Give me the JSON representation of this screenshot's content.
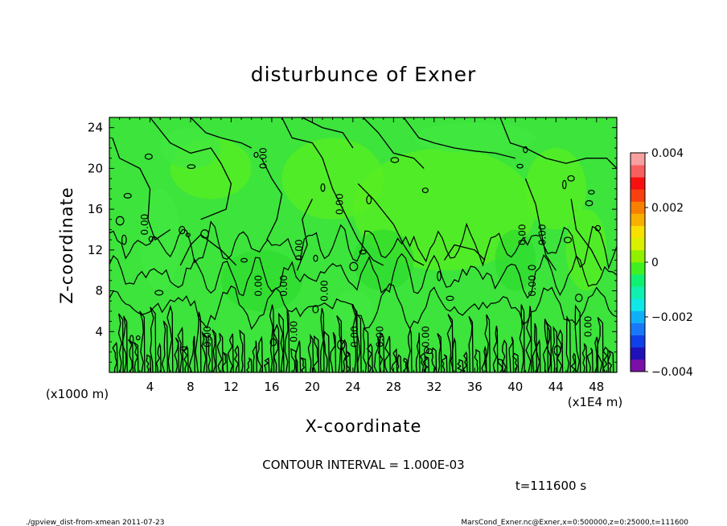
{
  "chart_data": {
    "type": "heatmap",
    "title": "disturbunce of Exner",
    "xlabel": "X-coordinate",
    "ylabel": "Z-coordinate",
    "x_unit_left": "(x1000 m)",
    "x_unit_right": "(x1E4 m)",
    "x_ticks": [
      "4",
      "8",
      "12",
      "16",
      "20",
      "24",
      "28",
      "32",
      "36",
      "40",
      "44",
      "48"
    ],
    "x_tick_values": [
      4,
      8,
      12,
      16,
      20,
      24,
      28,
      32,
      36,
      40,
      44,
      48
    ],
    "xlim": [
      0,
      50
    ],
    "y_ticks": [
      "4",
      "8",
      "12",
      "16",
      "20",
      "24"
    ],
    "y_tick_values": [
      4,
      8,
      12,
      16,
      20,
      24
    ],
    "ylim": [
      0,
      25
    ],
    "contour_interval_text": "CONTOUR INTERVAL = 1.000E-03",
    "contour_label": "0.00",
    "time_text": "t=111600 s",
    "colorbar": {
      "range": [
        -0.004,
        0.004
      ],
      "tick_labels": [
        "0.004",
        "0.002",
        "0",
        "−0.002",
        "−0.004"
      ],
      "tick_values": [
        0.004,
        0.002,
        0,
        -0.002,
        -0.004
      ],
      "colors": [
        "#7b10a8",
        "#2010b8",
        "#1040e8",
        "#1878f8",
        "#10b0f8",
        "#10e8e8",
        "#10f0b0",
        "#10f070",
        "#40f020",
        "#90f000",
        "#d8f000",
        "#f8e000",
        "#f8b000",
        "#f88000",
        "#f84010",
        "#f81010",
        "#f86060",
        "#f8a0a0"
      ]
    },
    "field_colors": {
      "low": "#2edc2e",
      "mid": "#40e840",
      "high": "#58f020"
    }
  },
  "footer": {
    "left": "./gpview_dist-from-xmean 2011-07-23",
    "right": "MarsCond_Exner.nc@Exner,x=0:500000,z=0:25000,t=111600"
  }
}
